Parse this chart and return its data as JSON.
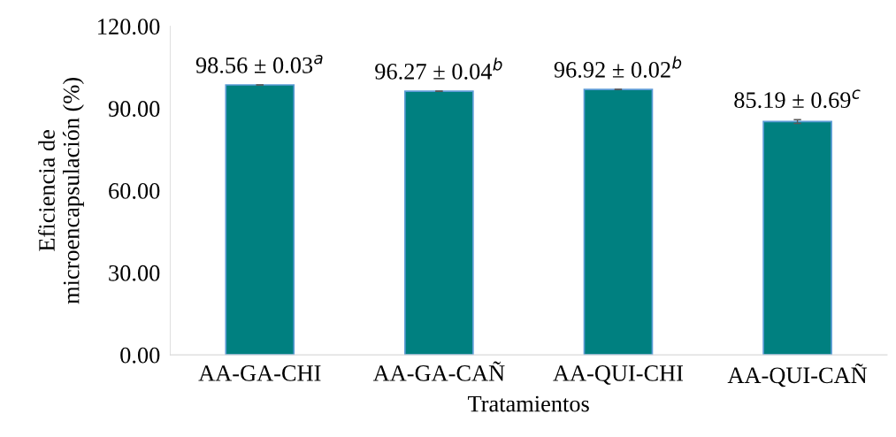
{
  "chart_data": {
    "type": "bar",
    "xlabel": "Tratamientos",
    "ylabel": "Eficiencia de\nmicroencapsulación (%)",
    "categories": [
      "AA-GA-CHI",
      "AA-GA-CAÑ",
      "AA-QUI-CHI",
      "AA-QUI-CAÑ"
    ],
    "values": [
      98.56,
      96.27,
      96.92,
      85.19
    ],
    "errors": [
      0.03,
      0.04,
      0.02,
      0.69
    ],
    "value_labels": [
      "98.56 ± 0.03$^{a}$",
      "96.27 ± 0.04$^{b}$",
      "96.92 ± 0.02$^{b}$",
      "85.19 ± 0.69$^{c}$"
    ],
    "color": "#008080",
    "ylim": [
      0,
      120
    ],
    "yticks": [
      {
        "value": 0,
        "label": "0.00"
      },
      {
        "value": 30,
        "label": "30.00"
      },
      {
        "value": 60,
        "label": "60.00"
      },
      {
        "value": 90,
        "label": "90.00"
      },
      {
        "value": 120,
        "label": "120.00"
      }
    ],
    "grid": false
  }
}
